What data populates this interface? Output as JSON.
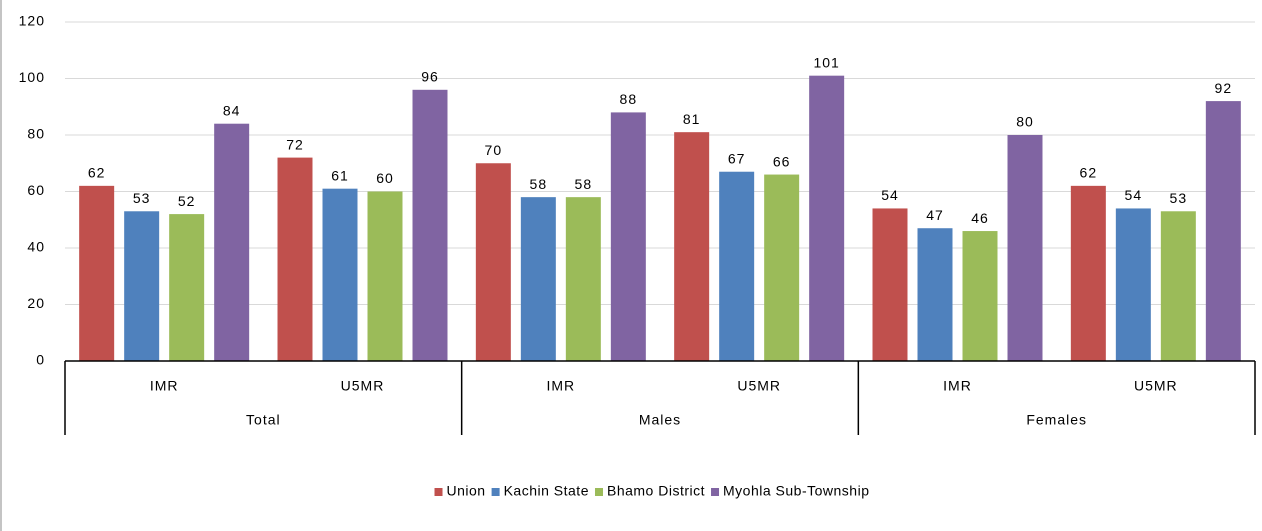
{
  "chart_data": {
    "type": "bar",
    "categories": [
      "IMR",
      "U5MR",
      "IMR",
      "U5MR",
      "IMR",
      "U5MR"
    ],
    "category_groups": [
      "Total",
      "Males",
      "Females"
    ],
    "series": [
      {
        "name": "Union",
        "color": "#c0504d",
        "values": [
          62,
          72,
          70,
          81,
          54,
          62
        ]
      },
      {
        "name": "Kachin State",
        "color": "#4f81bd",
        "values": [
          53,
          61,
          58,
          67,
          47,
          54
        ]
      },
      {
        "name": "Bhamo District",
        "color": "#9bbb59",
        "values": [
          52,
          60,
          58,
          66,
          46,
          53
        ]
      },
      {
        "name": "Myohla Sub-Township",
        "color": "#8064a2",
        "values": [
          84,
          96,
          88,
          101,
          80,
          92
        ]
      }
    ],
    "ylim": [
      0,
      120
    ],
    "yticks": [
      0,
      20,
      40,
      60,
      80,
      100,
      120
    ],
    "grid": true,
    "legend": "bottom"
  }
}
